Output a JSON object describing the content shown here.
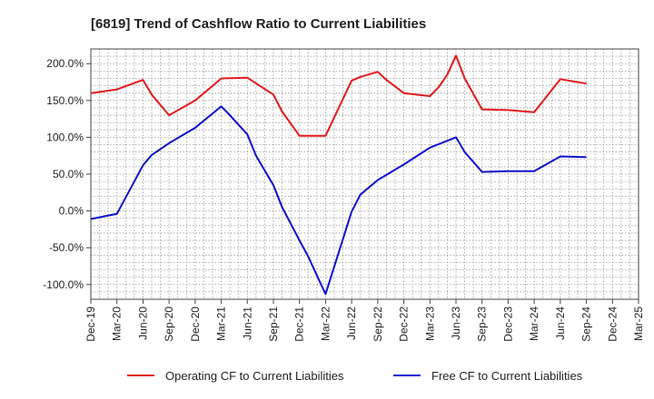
{
  "chart_data": {
    "type": "line",
    "title": "[6819]  Trend of Cashflow Ratio to Current Liabilities",
    "xlabel": "",
    "ylabel": "",
    "x_tick_labels": [
      "Dec-19",
      "Mar-20",
      "Jun-20",
      "Sep-20",
      "Dec-20",
      "Mar-21",
      "Jun-21",
      "Sep-21",
      "Dec-21",
      "Mar-22",
      "Jun-22",
      "Sep-22",
      "Dec-22",
      "Mar-23",
      "Jun-23",
      "Sep-23",
      "Dec-23",
      "Mar-24",
      "Jun-24",
      "Sep-24",
      "Dec-24",
      "Mar-25"
    ],
    "y_tick_labels": [
      "-100.0%",
      "-50.0%",
      "0.0%",
      "50.0%",
      "100.0%",
      "150.0%",
      "200.0%"
    ],
    "y_ticks": [
      -100,
      -50,
      0,
      50,
      100,
      150,
      200
    ],
    "ylim": [
      -120,
      220
    ],
    "grid": true,
    "legend_position": "bottom",
    "series": [
      {
        "name": "Operating CF to Current Liabilities",
        "color": "#e31a1c",
        "points": [
          {
            "x": "Dec-19",
            "y": 160
          },
          {
            "x": "Mar-20",
            "y": 165
          },
          {
            "x": "Jun-20",
            "y": 178
          },
          {
            "x": "Jul-20",
            "y": 158
          },
          {
            "x": "Sep-20",
            "y": 130
          },
          {
            "x": "Dec-20",
            "y": 150
          },
          {
            "x": "Mar-21",
            "y": 180
          },
          {
            "x": "Jun-21",
            "y": 181
          },
          {
            "x": "Sep-21",
            "y": 158
          },
          {
            "x": "Oct-21",
            "y": 135
          },
          {
            "x": "Dec-21",
            "y": 102
          },
          {
            "x": "Mar-22",
            "y": 102
          },
          {
            "x": "Jun-22",
            "y": 177
          },
          {
            "x": "Jul-22",
            "y": 182
          },
          {
            "x": "Sep-22",
            "y": 189
          },
          {
            "x": "Oct-22",
            "y": 178
          },
          {
            "x": "Dec-22",
            "y": 160
          },
          {
            "x": "Mar-23",
            "y": 156
          },
          {
            "x": "Apr-23",
            "y": 168
          },
          {
            "x": "May-23",
            "y": 185
          },
          {
            "x": "Jun-23",
            "y": 211
          },
          {
            "x": "Jul-23",
            "y": 180
          },
          {
            "x": "Sep-23",
            "y": 138
          },
          {
            "x": "Dec-23",
            "y": 137
          },
          {
            "x": "Mar-24",
            "y": 134
          },
          {
            "x": "Jun-24",
            "y": 179
          },
          {
            "x": "Sep-24",
            "y": 173
          }
        ]
      },
      {
        "name": "Free CF to Current Liabilities",
        "color": "#1010d0",
        "points": [
          {
            "x": "Dec-19",
            "y": -11
          },
          {
            "x": "Mar-20",
            "y": -4
          },
          {
            "x": "Jun-20",
            "y": 62
          },
          {
            "x": "Jul-20",
            "y": 76
          },
          {
            "x": "Sep-20",
            "y": 92
          },
          {
            "x": "Dec-20",
            "y": 113
          },
          {
            "x": "Mar-21",
            "y": 142
          },
          {
            "x": "Apr-21",
            "y": 130
          },
          {
            "x": "Jun-21",
            "y": 104
          },
          {
            "x": "Jul-21",
            "y": 75
          },
          {
            "x": "Sep-21",
            "y": 35
          },
          {
            "x": "Oct-21",
            "y": 5
          },
          {
            "x": "Dec-21",
            "y": -40
          },
          {
            "x": "Jan-22",
            "y": -62
          },
          {
            "x": "Mar-22",
            "y": -113
          },
          {
            "x": "Jun-22",
            "y": -1
          },
          {
            "x": "Jul-22",
            "y": 22
          },
          {
            "x": "Sep-22",
            "y": 42
          },
          {
            "x": "Dec-22",
            "y": 63
          },
          {
            "x": "Mar-23",
            "y": 86
          },
          {
            "x": "Jun-23",
            "y": 100
          },
          {
            "x": "Jul-23",
            "y": 80
          },
          {
            "x": "Sep-23",
            "y": 53
          },
          {
            "x": "Dec-23",
            "y": 54
          },
          {
            "x": "Mar-24",
            "y": 54
          },
          {
            "x": "Jun-24",
            "y": 74
          },
          {
            "x": "Sep-24",
            "y": 73
          }
        ]
      }
    ]
  }
}
